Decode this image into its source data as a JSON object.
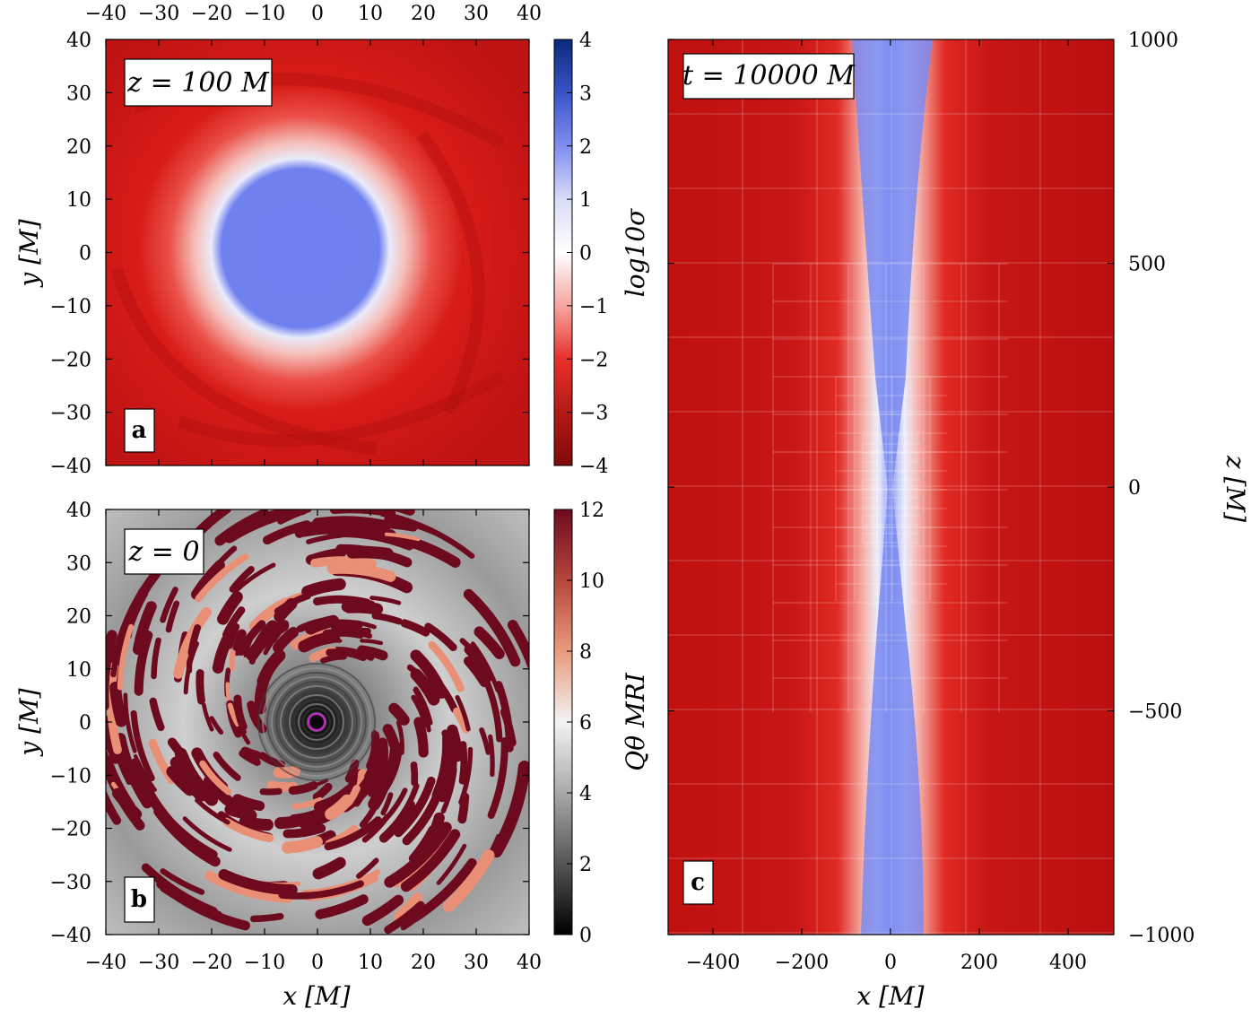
{
  "panels": {
    "a": {
      "letter": "a",
      "label": "z = 100 M",
      "ylabel": "y [M]",
      "x_ticks": [
        "−40",
        "−30",
        "−20",
        "−10",
        "0",
        "10",
        "20",
        "30",
        "40"
      ],
      "y_ticks": [
        "40",
        "30",
        "20",
        "10",
        "0",
        "−10",
        "−20",
        "−30",
        "−40"
      ],
      "colorbar": {
        "label": "log10σ",
        "ticks": [
          "4",
          "3",
          "2",
          "1",
          "0",
          "−1",
          "−2",
          "−3",
          "−4"
        ],
        "colors": [
          "#0a2a7a",
          "#3a54c8",
          "#7f8ef0",
          "#d8dcf7",
          "#ffffff",
          "#f6a6a0",
          "#e8312b",
          "#b31a15",
          "#7f0a0a"
        ]
      }
    },
    "b": {
      "letter": "b",
      "label": "z = 0",
      "xlabel": "x [M]",
      "ylabel": "y [M]",
      "x_ticks": [
        "−40",
        "−30",
        "−20",
        "−10",
        "0",
        "10",
        "20",
        "30",
        "40"
      ],
      "y_ticks": [
        "40",
        "30",
        "20",
        "10",
        "0",
        "−10",
        "−20",
        "−30",
        "−40"
      ],
      "colorbar": {
        "label": "Qθ MRI",
        "ticks": [
          "12",
          "10",
          "8",
          "6",
          "4",
          "2",
          "0"
        ],
        "colors": [
          "#6e0a1e",
          "#b7473d",
          "#e99a7c",
          "#f3f3f3",
          "#a9a9a9",
          "#555555",
          "#000000"
        ]
      }
    },
    "c": {
      "letter": "c",
      "label": "t = 10000 M",
      "xlabel": "x [M]",
      "zlabel": "z [M]",
      "x_ticks": [
        "−400",
        "−200",
        "0",
        "200",
        "400"
      ],
      "z_ticks": [
        "1000",
        "500",
        "0",
        "−500",
        "−1000"
      ]
    }
  },
  "colors": {
    "deep_red": "#b30f0f",
    "red": "#d92020",
    "light_red": "#f4b0ab",
    "blue": "#6e7ff0",
    "mesh": "#ffffff"
  }
}
